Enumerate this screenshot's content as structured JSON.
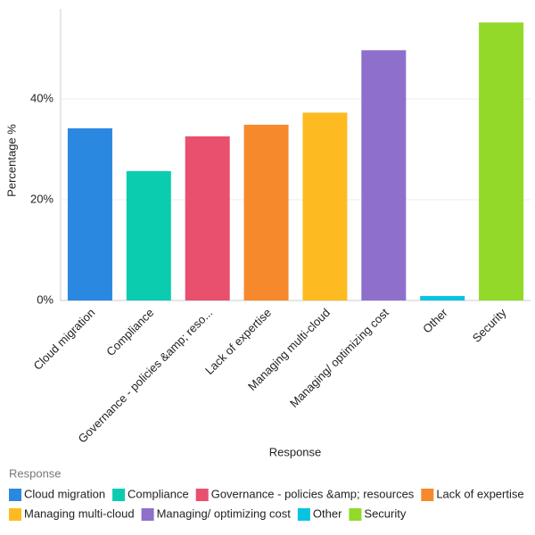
{
  "chart_data": {
    "type": "bar",
    "x_label": "Response",
    "y_label": "Percentage %",
    "legend_title": "Response",
    "categories": [
      "Cloud migration",
      "Compliance",
      "Governance - policies &amp; resources",
      "Lack of expertise",
      "Managing multi-cloud",
      "Managing/ optimizing cost",
      "Other",
      "Security"
    ],
    "xtick_labels": [
      "Cloud migration",
      "Compliance",
      "Governance - policies &amp; reso...",
      "Lack of expertise",
      "Managing multi-cloud",
      "Managing/ optimizing cost",
      "Other",
      "Security"
    ],
    "values": [
      34.2,
      25.7,
      32.6,
      34.9,
      37.3,
      49.7,
      0.9,
      55.2
    ],
    "colors": [
      "#2a88e0",
      "#0cccb0",
      "#e8506e",
      "#f5892b",
      "#fdbb21",
      "#8e6fcc",
      "#0ac3e0",
      "#92d929"
    ],
    "ylim": [
      0,
      57.9
    ],
    "yticks": [
      {
        "value": 0,
        "label": "0%"
      },
      {
        "value": 20,
        "label": "20%"
      },
      {
        "value": 40,
        "label": "40%"
      }
    ],
    "grid": true
  }
}
